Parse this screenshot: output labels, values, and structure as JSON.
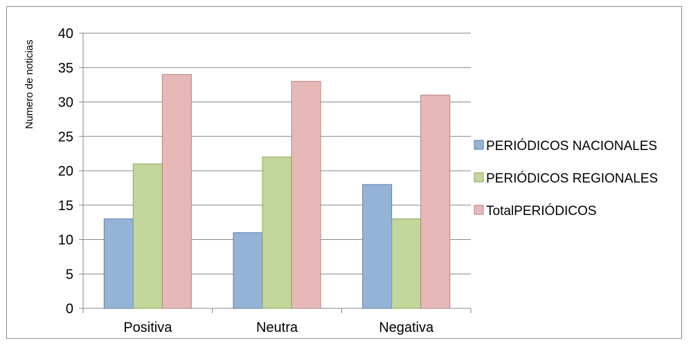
{
  "chart_data": {
    "type": "bar",
    "categories": [
      "Positiva",
      "Neutra",
      "Negativa"
    ],
    "series": [
      {
        "name": "PERIÓDICOS NACIONALES",
        "values": [
          13,
          11,
          18
        ],
        "color": "#95b3d7",
        "stroke": "#5b7fa8"
      },
      {
        "name": "PERIÓDICOS  REGIONALES",
        "values": [
          21,
          22,
          13
        ],
        "color": "#c3d69b",
        "stroke": "#8ea45b"
      },
      {
        "name": "TotalPERIÓDICOS",
        "values": [
          34,
          33,
          31
        ],
        "color": "#e6b9b8",
        "stroke": "#b67f7e"
      }
    ],
    "ylabel": "Numero de noticias",
    "ylim": [
      0,
      40
    ],
    "yticks": [
      0,
      5,
      10,
      15,
      20,
      25,
      30,
      35,
      40
    ],
    "grid": true,
    "legend_position": "right"
  }
}
